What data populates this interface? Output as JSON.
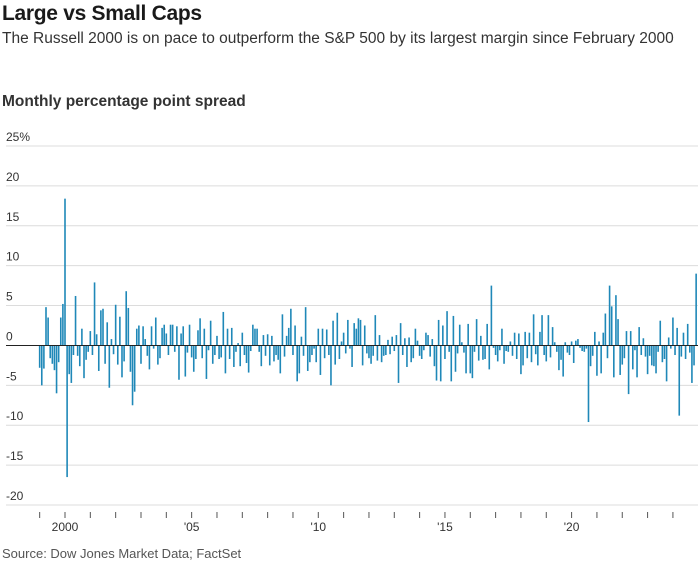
{
  "header": {
    "title": "Large vs Small Caps",
    "subtitle": "The Russell 2000 is on pace to outperform the S&P 500 by its largest margin since February 2000",
    "unit_label": "Monthly percentage point spread"
  },
  "footer": {
    "source": "Source: Dow Jones Market Data; FactSet"
  },
  "colors": {
    "bar": "#1f88b8",
    "grid": "#dcdcdc",
    "zero_line": "#222222"
  },
  "chart_data": {
    "type": "bar",
    "title": "Large vs Small Caps",
    "ylabel": "Monthly percentage point spread",
    "ylim": [
      -20,
      25
    ],
    "y_ticks": [
      {
        "value": 25,
        "label": "25%"
      },
      {
        "value": 20,
        "label": "20"
      },
      {
        "value": 15,
        "label": "15"
      },
      {
        "value": 10,
        "label": "10"
      },
      {
        "value": 5,
        "label": "5"
      },
      {
        "value": 0,
        "label": "0"
      },
      {
        "value": -5,
        "label": "-5"
      },
      {
        "value": -10,
        "label": "-10"
      },
      {
        "value": -15,
        "label": "-15"
      },
      {
        "value": -20,
        "label": "-20"
      }
    ],
    "x_ticks": [
      {
        "year": 2000,
        "label": "2000"
      },
      {
        "year": 2005,
        "label": "'05"
      },
      {
        "year": 2010,
        "label": "'10"
      },
      {
        "year": 2015,
        "label": "'15"
      },
      {
        "year": 2020,
        "label": "'20"
      }
    ],
    "grid": true,
    "x_start": "1999-01",
    "values": [
      -2.8,
      -5,
      -2.9,
      4.8,
      3.5,
      -1.6,
      -2.3,
      -3.1,
      -6,
      -2.1,
      3.5,
      5.2,
      18.4,
      -16.5,
      -3.6,
      -4.7,
      -1.2,
      6.2,
      -1.3,
      -2.6,
      2.1,
      -4.1,
      -1.8,
      -0.8,
      1.8,
      -1.2,
      7.9,
      1.4,
      -3.2,
      4.4,
      4.6,
      -2.3,
      2.9,
      -5.3,
      0.8,
      -1.1,
      5.1,
      -2.4,
      3.6,
      -4,
      -2,
      6.8,
      4.7,
      -3.3,
      -7.5,
      -5.8,
      2.1,
      2.5,
      -2.3,
      2.4,
      0.8,
      -1.3,
      -3,
      2.4,
      -0.4,
      3.5,
      -2.4,
      -1.6,
      2.2,
      2.6,
      1.5,
      -1.2,
      2.6,
      2.6,
      -0.8,
      2.4,
      -4.3,
      1.5,
      2.4,
      -3.9,
      -0.9,
      2.6,
      -1.5,
      -3.3,
      -1.7,
      1.9,
      3.4,
      -1.6,
      2.1,
      -4.2,
      -0.6,
      3.1,
      -2.3,
      -1.2,
      1.2,
      -1.7,
      -1.5,
      4.2,
      -3.5,
      2.1,
      -1.7,
      2.2,
      -2.7,
      -0.8,
      0.3,
      -2.6,
      1.6,
      -1.2,
      -2.2,
      -3.4,
      -0.7,
      2.6,
      2.1,
      2.1,
      -0.8,
      -2.6,
      1.3,
      -1.3,
      1.4,
      -2.5,
      1.2,
      -2,
      -1.2,
      -1.8,
      -3.5,
      3.9,
      -1.4,
      1.2,
      2.2,
      4.6,
      -1.2,
      2.5,
      -4.5,
      -3.5,
      1.1,
      -1.3,
      4.8,
      -3.2,
      -2.1,
      -1.2,
      -0.4,
      -2.1,
      2.1,
      -3.7,
      2.1,
      -1.6,
      2,
      -1.2,
      -5,
      3.1,
      -2.4,
      4.1,
      -1.7,
      0.5,
      1.6,
      -1,
      3.2,
      -0.4,
      -2.7,
      2.8,
      2.1,
      3.4,
      3.2,
      -2.5,
      2.5,
      -1,
      -1.6,
      -2.3,
      -1.3,
      3.8,
      -1.9,
      1.3,
      -2.1,
      -1.3,
      -1.2,
      0.7,
      -1.1,
      1.1,
      -0.7,
      1.3,
      -4.7,
      2.8,
      -1.2,
      0.9,
      -2.7,
      1,
      -2.1,
      -1.6,
      2.1,
      0.6,
      -1.3,
      -1.7,
      -0.6,
      1.6,
      1.3,
      -1.4,
      0.8,
      -2.6,
      -4.4,
      3.2,
      -4.5,
      2.5,
      -1.7,
      4.3,
      -0.8,
      -4.5,
      3.7,
      -3.3,
      -1,
      2.6,
      0.4,
      -0.9,
      -3.5,
      2.7,
      -3.5,
      -4.1,
      -0.8,
      3.3,
      -1.9,
      1.2,
      -1.8,
      -1.7,
      2.7,
      -3,
      7.5,
      -0.3,
      -1.2,
      -2,
      -0.6,
      2.1,
      -2.3,
      -0.7,
      -0.8,
      0.5,
      -1.3,
      1.6,
      -1.7,
      1.5,
      -3.6,
      -2.5,
      1.7,
      -1.6,
      1.6,
      -2.1,
      3.9,
      -1.1,
      -2.5,
      1.7,
      3.8,
      -1.2,
      -2,
      3.8,
      -1.5,
      2.3,
      0.4,
      -0.8,
      -3.1,
      -1.8,
      -3.9,
      0.4,
      -0.9,
      -1.2,
      0.5,
      -2.2,
      0.6,
      0.8,
      -0.3,
      -0.7,
      -0.8,
      -0.4,
      -9.6,
      -2.6,
      -1.3,
      1.7,
      -3.8,
      0.5,
      -3.5,
      1.6,
      4,
      -1.6,
      7.5,
      4.9,
      -4,
      6.3,
      3.3,
      -3.7,
      -2.4,
      -1.6,
      1.8,
      -6.1,
      1.8,
      -3,
      -0.6,
      -4,
      2.3,
      -1.2,
      0.9,
      -1.4,
      -3.6,
      -1.3,
      -2.5,
      -2.6,
      -3.5,
      -0.8,
      3.1,
      -2.1,
      -1.7,
      -4.5,
      1,
      -0.4,
      3.5,
      -1.2,
      2.2,
      -8.8,
      -1.4,
      1.6,
      -1.7,
      2.7,
      -0.9,
      -4.7,
      -2.5,
      9
    ]
  }
}
